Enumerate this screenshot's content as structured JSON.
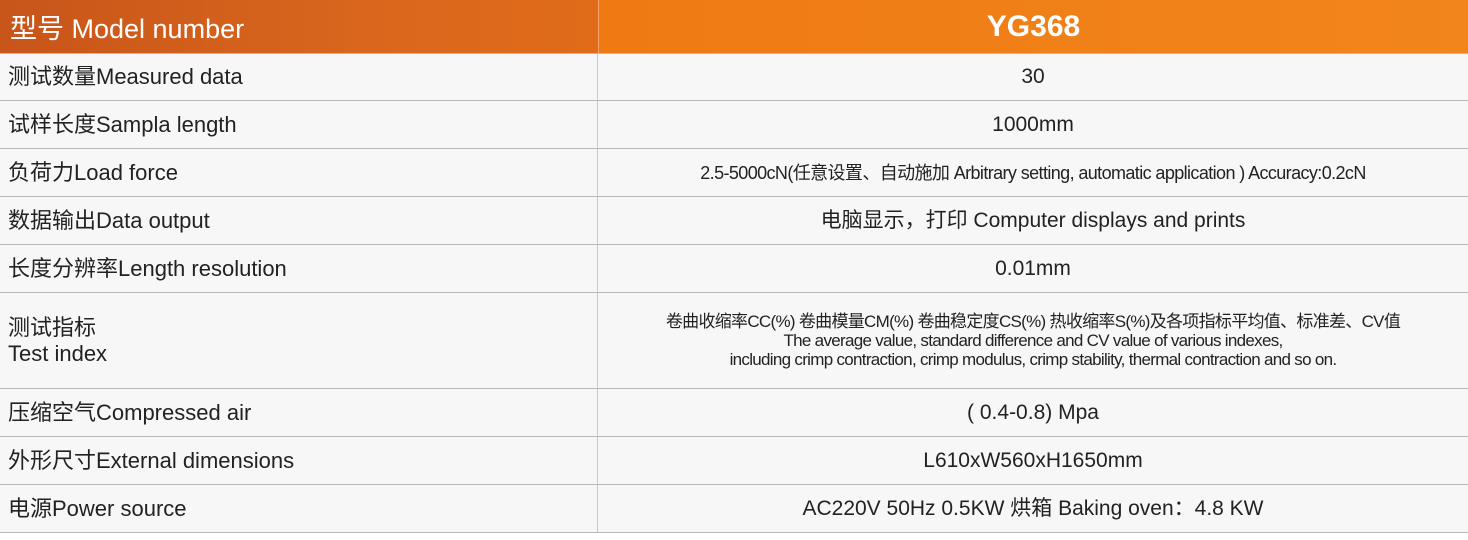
{
  "header": {
    "label": "型号 Model number",
    "value": "YG368"
  },
  "rows": [
    {
      "label": [
        "测试数量Measured data"
      ],
      "value": [
        "30"
      ]
    },
    {
      "label": [
        "试样长度Sampla length"
      ],
      "value": [
        "1000mm"
      ]
    },
    {
      "label": [
        "负荷力Load force"
      ],
      "value": [
        "2.5-5000cN(任意设置、自动施加 Arbitrary setting, automatic application ) Accuracy:0.2cN"
      ]
    },
    {
      "label": [
        "数据输出Data output"
      ],
      "value": [
        "电脑显示，打印 Computer displays and prints"
      ]
    },
    {
      "label": [
        "长度分辨率Length resolution"
      ],
      "value": [
        "0.01mm"
      ]
    },
    {
      "label": [
        "测试指标",
        "Test index"
      ],
      "value": [
        "卷曲收缩率CC(%) 卷曲模量CM(%) 卷曲稳定度CS(%) 热收缩率S(%)及各项指标平均值、标准差、CV值",
        "The average value, standard difference and CV value of various indexes,",
        "including crimp contraction, crimp modulus, crimp stability, thermal contraction and so on."
      ]
    },
    {
      "label": [
        "压缩空气Compressed air"
      ],
      "value": [
        "( 0.4-0.8) Mpa"
      ]
    },
    {
      "label": [
        "外形尺寸External dimensions"
      ],
      "value": [
        "L610xW560xH1650mm"
      ]
    },
    {
      "label": [
        "电源Power source"
      ],
      "value": [
        "AC220V  50Hz  0.5KW  烘箱 Baking oven：4.8 KW"
      ]
    }
  ]
}
